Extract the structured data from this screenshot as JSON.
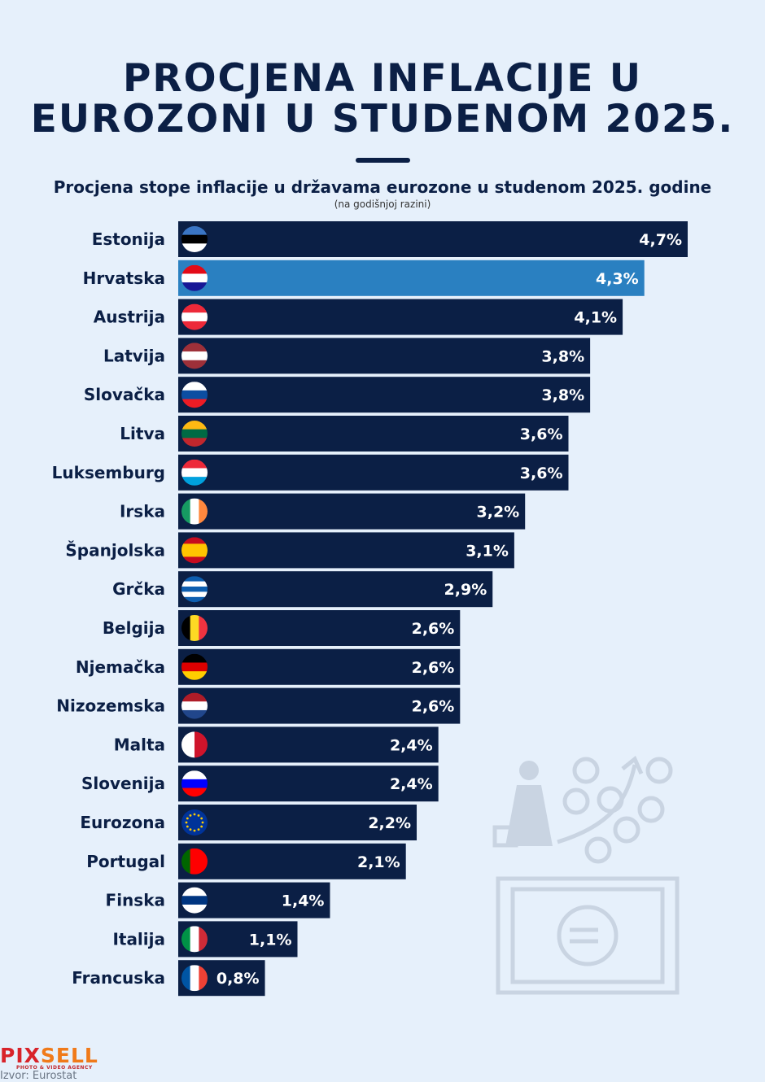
{
  "title_line1": "PROCJENA INFLACIJE U",
  "title_line2": "EUROZONI U STUDENOM 2025.",
  "subtitle": "Procjena stope inflacije u državama eurozone u studenom 2025. godine",
  "note": "(na godišnjoj razini)",
  "brand": {
    "part1": "PIX",
    "part2": "SELL",
    "tagline": "PHOTO & VIDEO AGENCY"
  },
  "source": "Izvor: Eurostat",
  "colors": {
    "background": "#e6f0fb",
    "bar": "#0b1f45",
    "highlight": "#2a80c1",
    "label_text": "#ffffff"
  },
  "chart_data": {
    "type": "bar",
    "orientation": "horizontal",
    "title": "Procjena stope inflacije u državama eurozone u studenom 2025. godine",
    "unit": "%",
    "categories": [
      "Estonija",
      "Hrvatska",
      "Austrija",
      "Latvija",
      "Slovačka",
      "Litva",
      "Luksemburg",
      "Irska",
      "Španjolska",
      "Grčka",
      "Belgija",
      "Njemačka",
      "Nizozemska",
      "Malta",
      "Slovenija",
      "Eurozona",
      "Portugal",
      "Finska",
      "Italija",
      "Francuska"
    ],
    "values": [
      4.7,
      4.3,
      4.1,
      3.8,
      3.8,
      3.6,
      3.6,
      3.2,
      3.1,
      2.9,
      2.6,
      2.6,
      2.6,
      2.4,
      2.4,
      2.2,
      2.1,
      1.4,
      1.1,
      0.8
    ],
    "labels": [
      "4,7%",
      "4,3%",
      "4,1%",
      "3,8%",
      "3,8%",
      "3,6%",
      "3,6%",
      "3,2%",
      "3,1%",
      "2,9%",
      "2,6%",
      "2,6%",
      "2,6%",
      "2,4%",
      "2,4%",
      "2,2%",
      "2,1%",
      "1,4%",
      "1,1%",
      "0,8%"
    ],
    "highlighted": "Hrvatska",
    "flags": [
      {
        "dir": "h",
        "colors": [
          "#3a75c4",
          "#000000",
          "#ffffff"
        ]
      },
      {
        "dir": "h",
        "colors": [
          "#e30a17",
          "#ffffff",
          "#171796"
        ]
      },
      {
        "dir": "h",
        "colors": [
          "#ed2939",
          "#ffffff",
          "#ed2939"
        ]
      },
      {
        "dir": "h",
        "colors": [
          "#9e3039",
          "#ffffff",
          "#9e3039"
        ]
      },
      {
        "dir": "h",
        "colors": [
          "#ffffff",
          "#0b4ea2",
          "#ee1c25"
        ]
      },
      {
        "dir": "h",
        "colors": [
          "#fdb913",
          "#006a44",
          "#c1272d"
        ]
      },
      {
        "dir": "h",
        "colors": [
          "#ed2939",
          "#ffffff",
          "#00a1de"
        ]
      },
      {
        "dir": "v",
        "colors": [
          "#169b62",
          "#ffffff",
          "#ff883e"
        ]
      },
      {
        "dir": "h",
        "colors": [
          "#c60b1e",
          "#ffc400",
          "#ffc400",
          "#c60b1e"
        ]
      },
      {
        "dir": "h",
        "colors": [
          "#0d5eaf",
          "#ffffff",
          "#0d5eaf",
          "#ffffff",
          "#0d5eaf"
        ]
      },
      {
        "dir": "v",
        "colors": [
          "#000000",
          "#fdda24",
          "#ef3340"
        ]
      },
      {
        "dir": "h",
        "colors": [
          "#000000",
          "#dd0000",
          "#ffce00"
        ]
      },
      {
        "dir": "h",
        "colors": [
          "#ae1c28",
          "#ffffff",
          "#21468b"
        ]
      },
      {
        "dir": "v",
        "colors": [
          "#ffffff",
          "#cf142b"
        ]
      },
      {
        "dir": "h",
        "colors": [
          "#ffffff",
          "#0000ff",
          "#ff0000"
        ]
      },
      {
        "dir": "h",
        "colors": [
          "#003399"
        ]
      },
      {
        "dir": "v",
        "colors": [
          "#006600",
          "#ff0000",
          "#ff0000"
        ]
      },
      {
        "dir": "h",
        "colors": [
          "#ffffff",
          "#003580",
          "#ffffff"
        ]
      },
      {
        "dir": "v",
        "colors": [
          "#009246",
          "#ffffff",
          "#ce2b37"
        ]
      },
      {
        "dir": "v",
        "colors": [
          "#0055a4",
          "#ffffff",
          "#ef4135"
        ]
      }
    ],
    "xlim": [
      0,
      4.7
    ],
    "grid": false,
    "legend": "none"
  }
}
